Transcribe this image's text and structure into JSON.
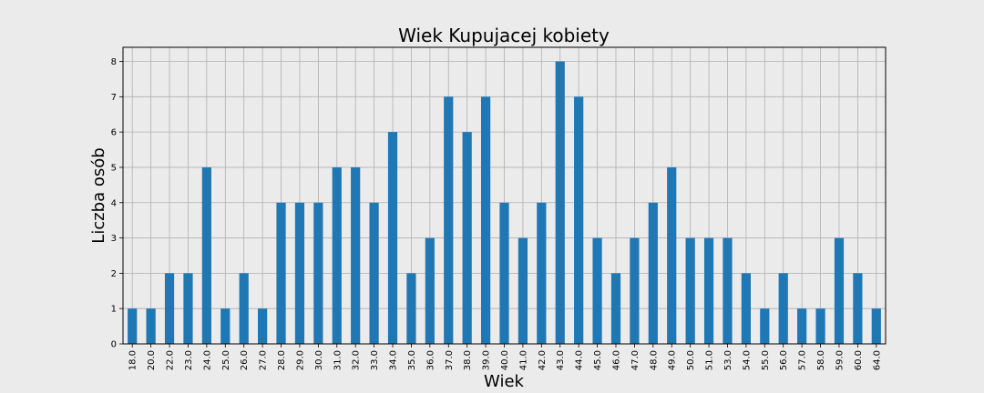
{
  "chart_data": {
    "type": "bar",
    "title": "Wiek Kupujacej kobiety",
    "xlabel": "Wiek",
    "ylabel": "Liczba osób",
    "categories": [
      "18.0",
      "20.0",
      "22.0",
      "23.0",
      "24.0",
      "25.0",
      "26.0",
      "27.0",
      "28.0",
      "29.0",
      "30.0",
      "31.0",
      "32.0",
      "33.0",
      "34.0",
      "35.0",
      "36.0",
      "37.0",
      "38.0",
      "39.0",
      "40.0",
      "41.0",
      "42.0",
      "43.0",
      "44.0",
      "45.0",
      "46.0",
      "47.0",
      "48.0",
      "49.0",
      "50.0",
      "51.0",
      "53.0",
      "54.0",
      "55.0",
      "56.0",
      "57.0",
      "58.0",
      "59.0",
      "60.0",
      "64.0"
    ],
    "values": [
      1,
      1,
      2,
      2,
      5,
      1,
      2,
      1,
      4,
      4,
      4,
      5,
      5,
      4,
      6,
      2,
      3,
      7,
      6,
      7,
      4,
      3,
      4,
      8,
      7,
      3,
      2,
      3,
      4,
      5,
      3,
      3,
      3,
      2,
      1,
      2,
      1,
      1,
      3,
      2,
      1
    ],
    "ylim": [
      0,
      8.4
    ],
    "yticks": [
      0,
      1,
      2,
      3,
      4,
      5,
      6,
      7,
      8
    ],
    "grid": true,
    "bar_color": "#1f77b4",
    "background": "#ebebeb",
    "plot_background": "#ebebeb"
  }
}
